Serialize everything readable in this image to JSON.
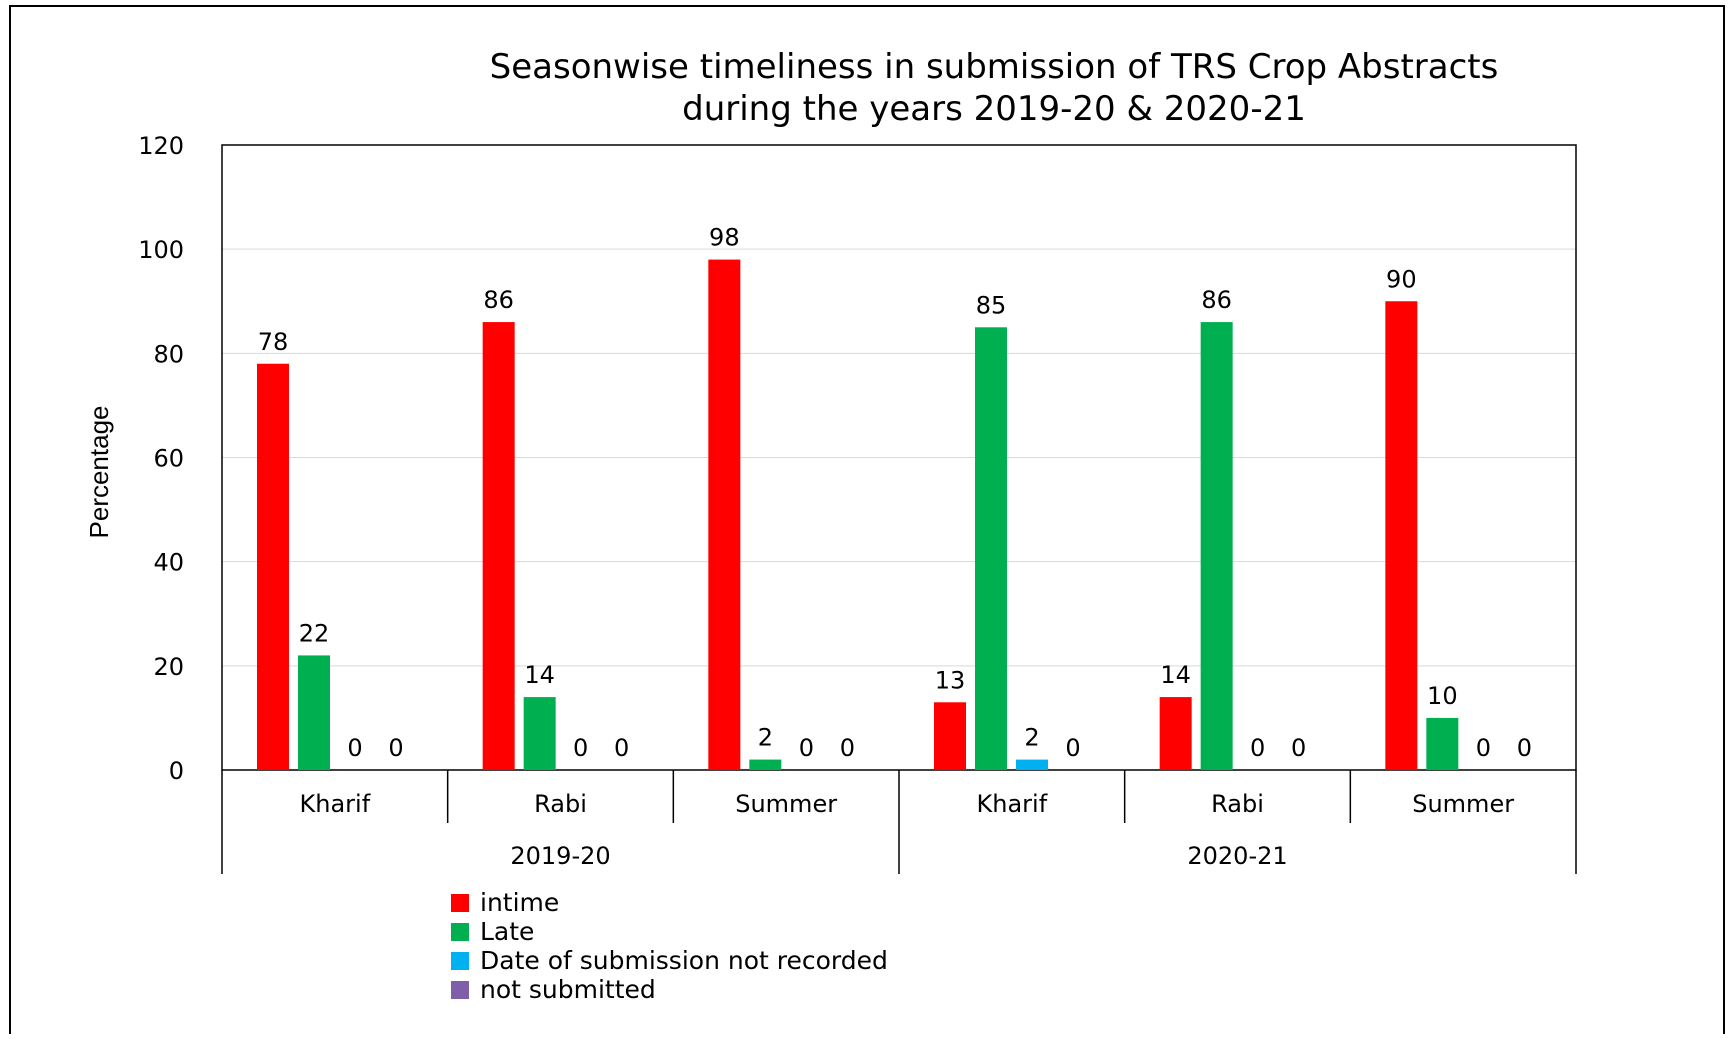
{
  "chart_data": {
    "type": "bar",
    "title_line1": "Seasonwise timeliness in submission of TRS Crop Abstracts",
    "title_line2": "during the years 2019-20 & 2020-21",
    "ylabel": "Percentage",
    "xlabel": "",
    "ylim": [
      0,
      120
    ],
    "yticks": [
      "0",
      "20",
      "40",
      "60",
      "80",
      "100",
      "120"
    ],
    "grid": "horizontal",
    "legend_position": "bottom-left",
    "groups": [
      {
        "label": "2019-20",
        "categories": [
          "Kharif",
          "Rabi",
          "Summer"
        ]
      },
      {
        "label": "2020-21",
        "categories": [
          "Kharif",
          "Rabi",
          "Summer"
        ]
      }
    ],
    "categories": [
      "Kharif",
      "Rabi",
      "Summer",
      "Kharif",
      "Rabi",
      "Summer"
    ],
    "series": [
      {
        "name": "intime",
        "color": "#ff0000",
        "values": [
          78,
          86,
          98,
          13,
          14,
          90
        ]
      },
      {
        "name": "Late",
        "color": "#00b050",
        "values": [
          22,
          14,
          2,
          85,
          86,
          10
        ]
      },
      {
        "name": "Date of submission not recorded",
        "color": "#00b0f0",
        "values": [
          0,
          0,
          0,
          2,
          0,
          0
        ]
      },
      {
        "name": "not submitted",
        "color": "#7f5fa8",
        "values": [
          0,
          0,
          0,
          0,
          0,
          0
        ]
      }
    ],
    "data_labels": [
      [
        "78",
        "86",
        "98",
        "13",
        "14",
        "90"
      ],
      [
        "22",
        "14",
        "2",
        "85",
        "86",
        "10"
      ],
      [
        "0",
        "0",
        "0",
        "2",
        "0",
        "0"
      ],
      [
        "0",
        "0",
        "0",
        "0",
        "0",
        "0"
      ]
    ]
  }
}
